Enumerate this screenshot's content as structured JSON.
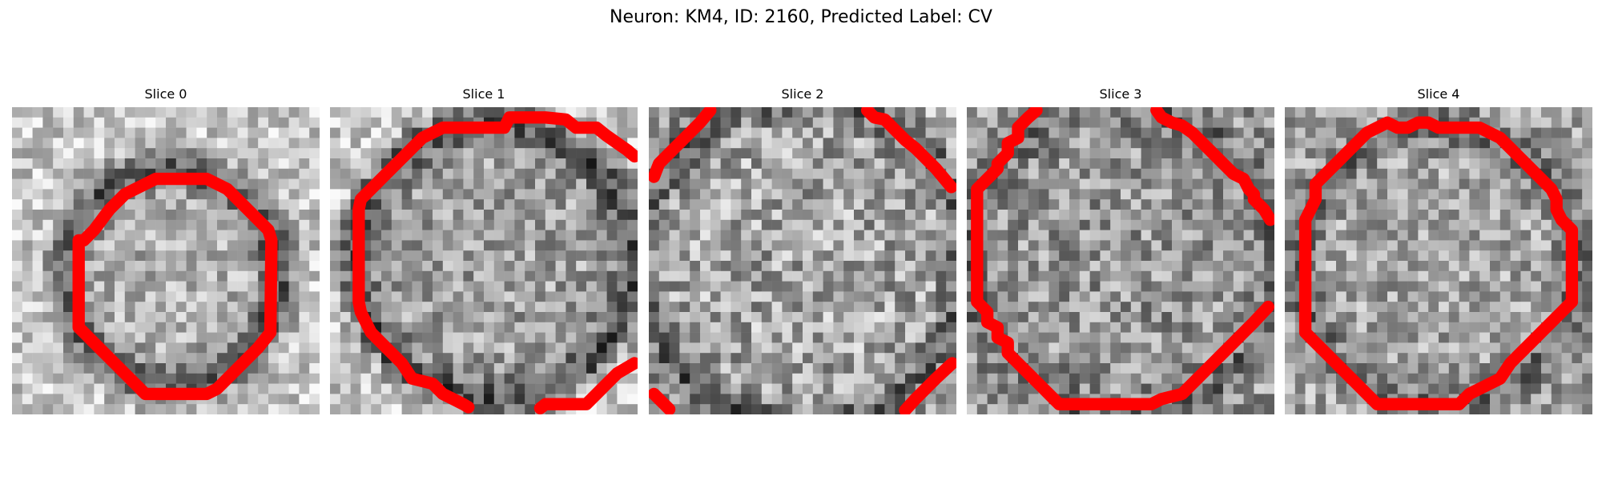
{
  "figure": {
    "title": "Neuron: KM4, ID: 2160, Predicted Label: CV"
  },
  "panels": [
    {
      "title": "Slice 0"
    },
    {
      "title": "Slice 1"
    },
    {
      "title": "Slice 2"
    },
    {
      "title": "Slice 3"
    },
    {
      "title": "Slice 4"
    }
  ],
  "colors": {
    "contour": "#ff0000",
    "background": "#ffffff"
  }
}
